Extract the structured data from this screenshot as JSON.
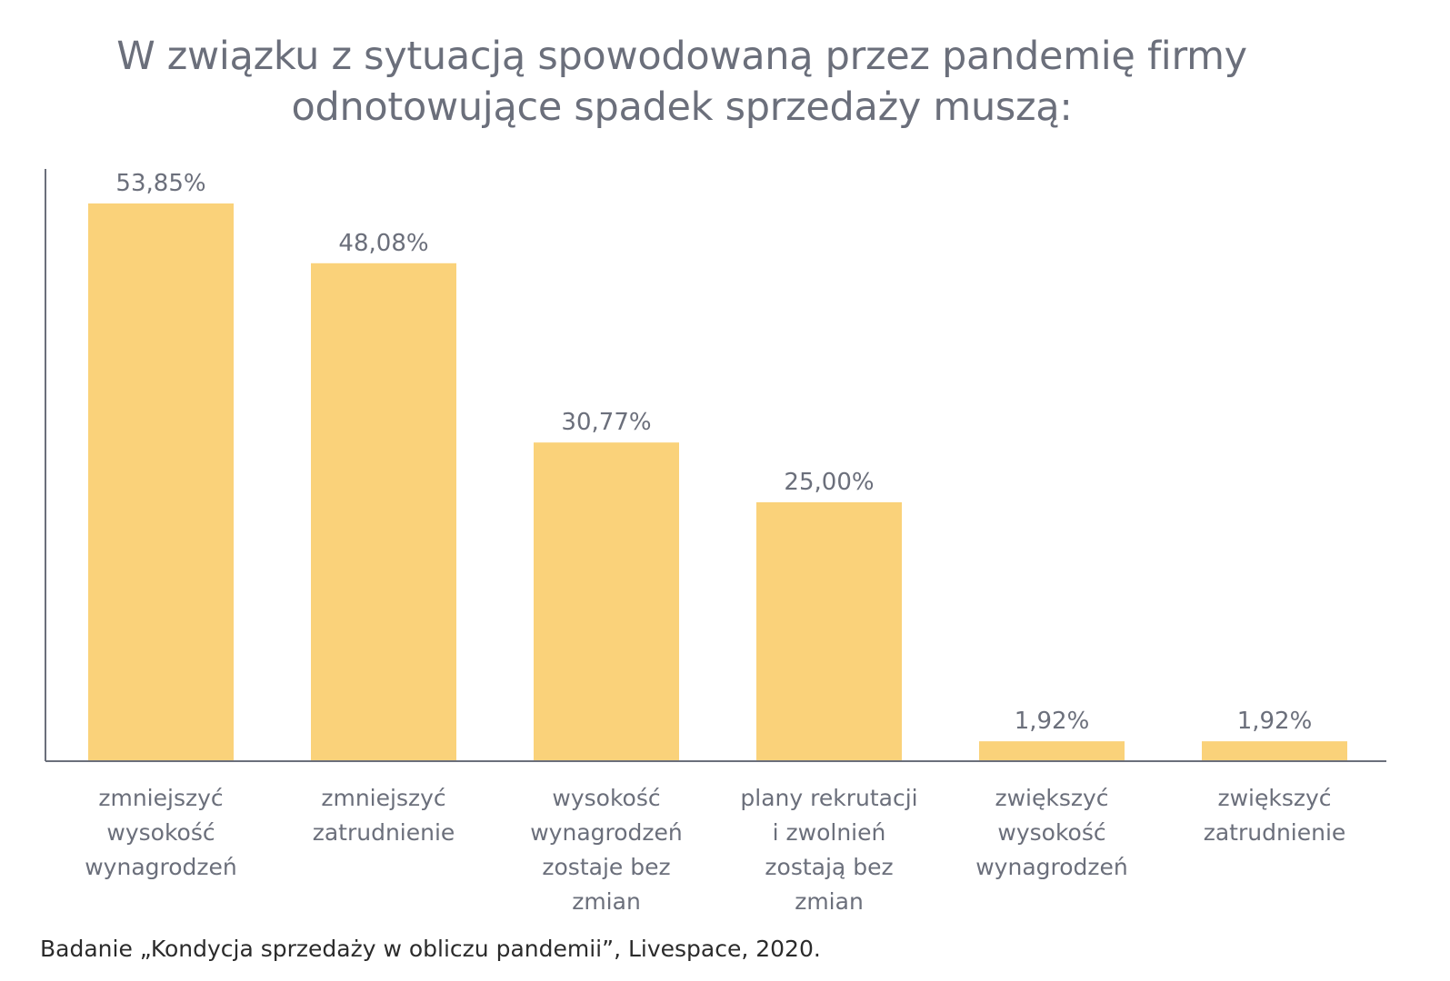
{
  "chart_data": {
    "type": "bar",
    "title_lines": [
      "W związku z sytuacją spowodowaną przez pandemię firmy",
      "odnotowujące spadek sprzedaży muszą:"
    ],
    "categories": [
      [
        "zmniejszyć",
        "wysokość",
        "wynagrodzeń"
      ],
      [
        "zmniejszyć",
        "zatrudnienie"
      ],
      [
        "wysokość",
        "wynagrodzeń",
        "zostaje bez",
        "zmian"
      ],
      [
        "plany rekrutacji",
        "i zwolnień",
        "zostają bez",
        "zmian"
      ],
      [
        "zwiększyć",
        "wysokość",
        "wynagrodzeń"
      ],
      [
        "zwiększyć",
        "zatrudnienie"
      ]
    ],
    "values": [
      53.85,
      48.08,
      30.77,
      25.0,
      1.92,
      1.92
    ],
    "value_labels": [
      "53,85%",
      "48,08%",
      "30,77%",
      "25,00%",
      "1,92%",
      "1,92%"
    ],
    "ylim": [
      0,
      56
    ],
    "grid": false,
    "legend": "none",
    "bar_color": "#fad27a",
    "axis_color": "#6b6f7b",
    "text_color": "#6b6f7b"
  },
  "source": "Badanie „Kondycja sprzedaży w obliczu pandemii”, Livespace, 2020."
}
